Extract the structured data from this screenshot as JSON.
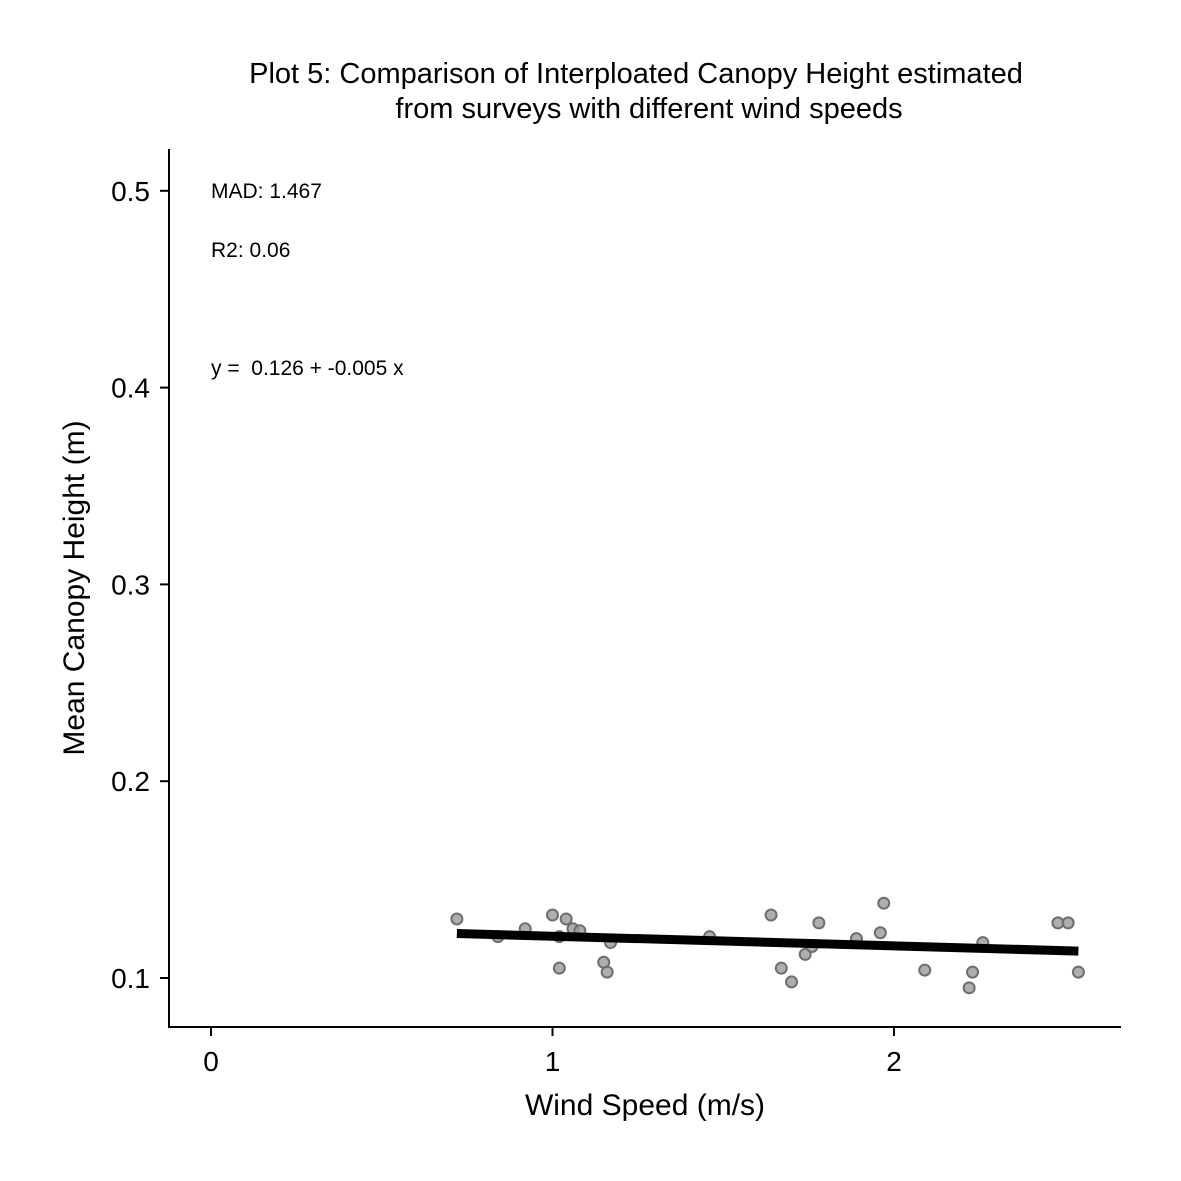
{
  "chart_data": {
    "type": "scatter",
    "title_lines": [
      "Plot 5: Comparison of Interploated Canopy Height estimated",
      "from surveys with different wind speeds"
    ],
    "xlabel": "Wind Speed (m/s)",
    "ylabel": "Mean Canopy Height (m)",
    "xlim": [
      -0.125,
      2.66
    ],
    "ylim": [
      0.075,
      0.52
    ],
    "x_ticks": [
      0,
      1,
      2
    ],
    "x_tick_labels": [
      "0",
      "1",
      "2"
    ],
    "y_ticks": [
      0.1,
      0.2,
      0.3,
      0.4,
      0.5
    ],
    "y_tick_labels": [
      "0.1",
      "0.2",
      "0.3",
      "0.4",
      "0.5"
    ],
    "grid": false,
    "annotations": [
      {
        "text": "MAD: 1.467",
        "x": 0,
        "y": 0.5
      },
      {
        "text": "R2: 0.06",
        "x": 0,
        "y": 0.47
      },
      {
        "text": "y =  0.126 + -0.005 x",
        "x": 0,
        "y": 0.41
      }
    ],
    "points": {
      "x": [
        0.72,
        0.84,
        0.92,
        1.0,
        1.02,
        1.02,
        1.04,
        1.06,
        1.08,
        1.15,
        1.16,
        1.17,
        1.46,
        1.64,
        1.67,
        1.7,
        1.74,
        1.76,
        1.78,
        1.89,
        1.96,
        1.97,
        2.09,
        2.22,
        2.23,
        2.26,
        2.48,
        2.51,
        2.54
      ],
      "y": [
        0.13,
        0.121,
        0.125,
        0.132,
        0.121,
        0.105,
        0.13,
        0.125,
        0.124,
        0.108,
        0.103,
        0.118,
        0.121,
        0.132,
        0.105,
        0.098,
        0.112,
        0.116,
        0.128,
        0.12,
        0.123,
        0.138,
        0.104,
        0.095,
        0.103,
        0.118,
        0.128,
        0.128,
        0.103
      ]
    },
    "fit_line": {
      "intercept": 0.126,
      "slope": -0.005,
      "x_range": [
        0.72,
        2.54
      ]
    }
  }
}
